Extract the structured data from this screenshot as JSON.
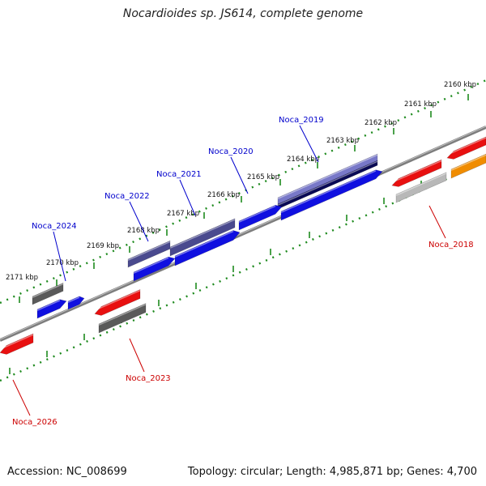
{
  "title": "Nocardioides sp. JS614, complete genome",
  "footer": {
    "accession": "Accession: NC_008699",
    "summary": "Topology: circular; Length: 4,985,871 bp; Genes: 4,700"
  },
  "colors": {
    "backbone": "#7d7d7d",
    "tick_dot": "#1e8a1e",
    "gene_blue": "#1010e0",
    "gene_purple": "#4a4a8e",
    "gene_red": "#e81010",
    "gene_gray": "#5a5a5a",
    "gene_lightgray": "#b8b8b8",
    "gene_orange": "#f08c00",
    "label_blue": "#0000cc",
    "label_red": "#cc0000"
  },
  "ruler": [
    {
      "label": "2160 kbp"
    },
    {
      "label": "2161 kbp"
    },
    {
      "label": "2162 kbp"
    },
    {
      "label": "2163 kbp"
    },
    {
      "label": "2164 kbp"
    },
    {
      "label": "2165 kbp"
    },
    {
      "label": "2166 kbp"
    },
    {
      "label": "2167 kbp"
    },
    {
      "label": "2168 kbp"
    },
    {
      "label": "2169 kbp"
    },
    {
      "label": "2170 kbp"
    },
    {
      "label": "2171 kbp"
    }
  ],
  "gene_labels": [
    {
      "name": "Noca_2019",
      "color": "label_blue"
    },
    {
      "name": "Noca_2020",
      "color": "label_blue"
    },
    {
      "name": "Noca_2021",
      "color": "label_blue"
    },
    {
      "name": "Noca_2022",
      "color": "label_blue"
    },
    {
      "name": "Noca_2024",
      "color": "label_blue"
    },
    {
      "name": "Noca_2018",
      "color": "label_red"
    },
    {
      "name": "Noca_2023",
      "color": "label_red"
    },
    {
      "name": "Noca_2026",
      "color": "label_red"
    }
  ]
}
